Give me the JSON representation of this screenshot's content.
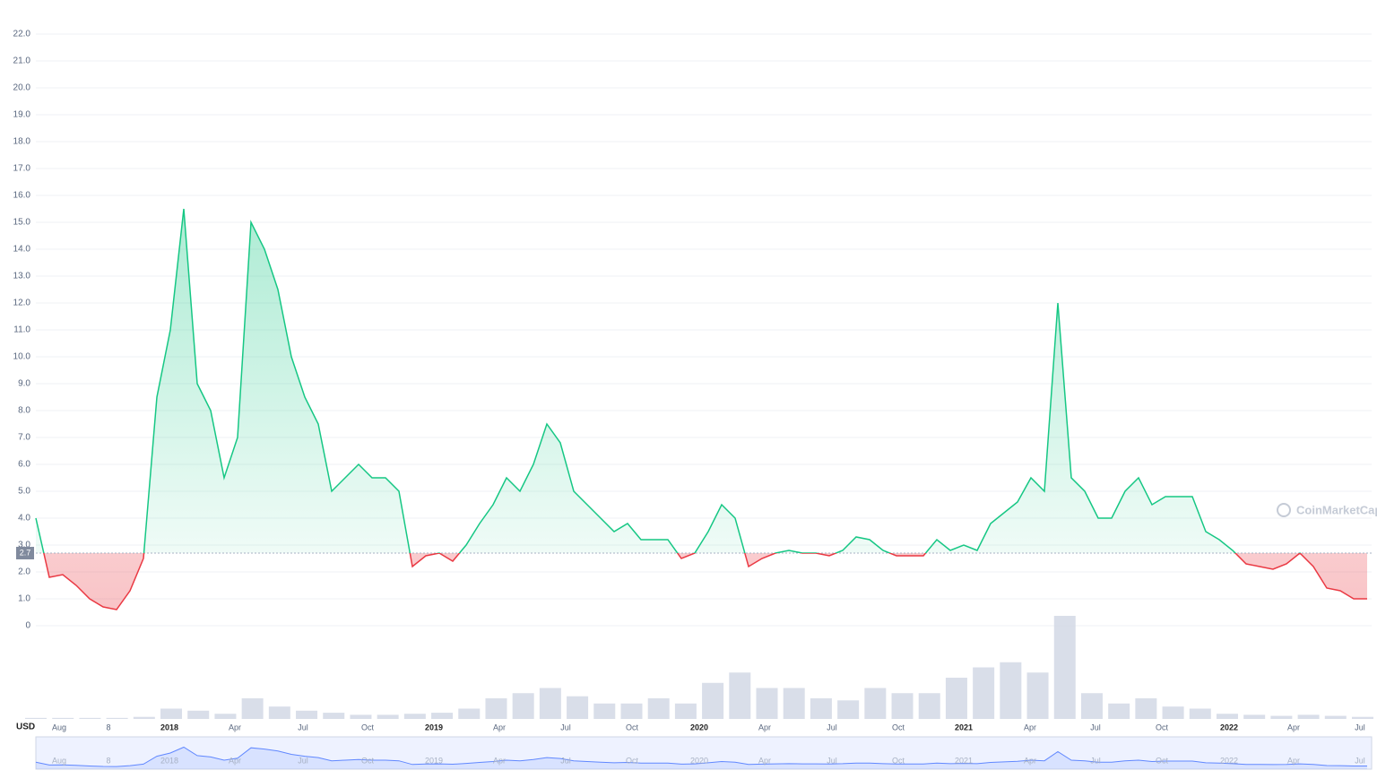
{
  "chart_data": {
    "type": "line",
    "currency": "USD",
    "watermark": "CoinMarketCap",
    "reference": {
      "value": 2.7,
      "label": "2.7"
    },
    "ylim": [
      0,
      22
    ],
    "yticks": [
      0,
      {
        "value": 1,
        "label": "1.0"
      },
      {
        "value": 2,
        "label": "2.0"
      },
      {
        "value": 3,
        "label": "3.0"
      },
      {
        "value": 4,
        "label": "4.0"
      },
      {
        "value": 5,
        "label": "5.0"
      },
      {
        "value": 6,
        "label": "6.0"
      },
      {
        "value": 7,
        "label": "7.0"
      },
      {
        "value": 8,
        "label": "8.0"
      },
      {
        "value": 9,
        "label": "9.0"
      },
      {
        "value": 10,
        "label": "10.0"
      },
      {
        "value": 11,
        "label": "11.0"
      },
      {
        "value": 12,
        "label": "12.0"
      },
      {
        "value": 13,
        "label": "13.0"
      },
      {
        "value": 14,
        "label": "14.0"
      },
      {
        "value": 15,
        "label": "15.0"
      },
      {
        "value": 16,
        "label": "16.0"
      },
      {
        "value": 17,
        "label": "17.0"
      },
      {
        "value": 18,
        "label": "18.0"
      },
      {
        "value": 19,
        "label": "19.0"
      },
      {
        "value": 20,
        "label": "20.0"
      },
      {
        "value": 21,
        "label": "21.0"
      },
      {
        "value": 22,
        "label": "22.0"
      }
    ],
    "x_labels": [
      "Aug",
      "8",
      "2018",
      "Apr",
      "Jul",
      "Oct",
      "2019",
      "Apr",
      "Jul",
      "Oct",
      "2020",
      "Apr",
      "Jul",
      "Oct",
      "2021",
      "Apr",
      "Jul",
      "Oct",
      "2022",
      "Apr",
      "Jul"
    ],
    "up_color": "#16c784",
    "down_color": "#ea3943",
    "price": [
      4.0,
      1.8,
      1.9,
      1.5,
      1.0,
      0.7,
      0.6,
      1.3,
      2.5,
      8.5,
      11.0,
      15.5,
      9.0,
      8.0,
      5.5,
      7.0,
      15.0,
      14.0,
      12.5,
      10.0,
      8.5,
      7.5,
      5.0,
      5.5,
      6.0,
      5.5,
      5.5,
      5.0,
      2.2,
      2.6,
      2.7,
      2.4,
      3.0,
      3.8,
      4.5,
      5.5,
      5.0,
      6.0,
      7.5,
      6.8,
      5.0,
      4.5,
      4.0,
      3.5,
      3.8,
      3.2,
      3.2,
      3.2,
      2.5,
      2.7,
      3.5,
      4.5,
      4.0,
      2.2,
      2.5,
      2.7,
      2.8,
      2.7,
      2.7,
      2.6,
      2.8,
      3.3,
      3.2,
      2.8,
      2.6,
      2.6,
      2.6,
      3.2,
      2.8,
      3.0,
      2.8,
      3.8,
      4.2,
      4.6,
      5.5,
      5.0,
      12.0,
      5.5,
      5.0,
      4.0,
      4.0,
      5.0,
      5.5,
      4.5,
      4.8,
      4.8,
      4.8,
      3.5,
      3.2,
      2.8,
      2.3,
      2.2,
      2.1,
      2.3,
      2.7,
      2.2,
      1.4,
      1.3,
      1.0,
      1.0
    ],
    "volume": [
      1,
      1,
      1,
      1,
      2,
      10,
      8,
      5,
      20,
      12,
      8,
      6,
      4,
      4,
      5,
      6,
      10,
      20,
      25,
      30,
      22,
      15,
      15,
      20,
      15,
      35,
      45,
      30,
      30,
      20,
      18,
      30,
      25,
      25,
      40,
      50,
      55,
      45,
      100,
      25,
      15,
      20,
      12,
      10,
      5,
      4,
      3,
      4,
      3,
      2
    ],
    "volume_color": "#cfd6e4",
    "navigator_color": "#6188ff"
  }
}
